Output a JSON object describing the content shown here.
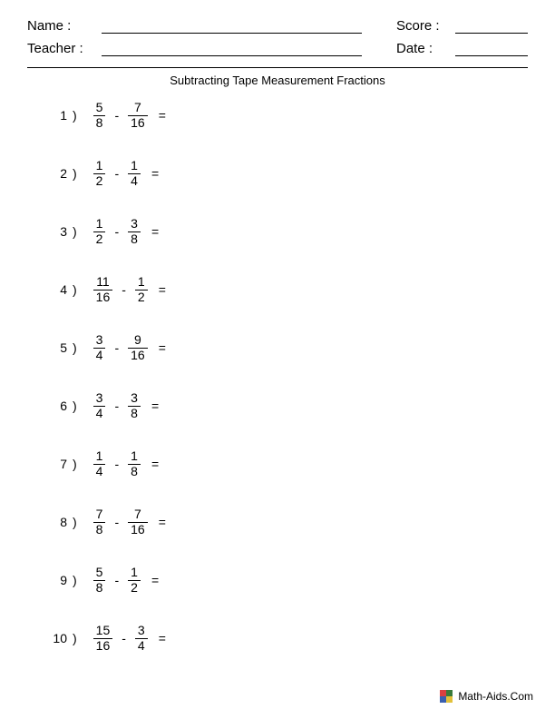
{
  "header": {
    "name_label": "Name :",
    "teacher_label": "Teacher :",
    "score_label": "Score :",
    "date_label": "Date :"
  },
  "title": "Subtracting Tape Measurement Fractions",
  "operator": "-",
  "equals": "=",
  "paren": ")",
  "problems": [
    {
      "n": "1",
      "a_num": "5",
      "a_den": "8",
      "b_num": "7",
      "b_den": "16"
    },
    {
      "n": "2",
      "a_num": "1",
      "a_den": "2",
      "b_num": "1",
      "b_den": "4"
    },
    {
      "n": "3",
      "a_num": "1",
      "a_den": "2",
      "b_num": "3",
      "b_den": "8"
    },
    {
      "n": "4",
      "a_num": "11",
      "a_den": "16",
      "b_num": "1",
      "b_den": "2"
    },
    {
      "n": "5",
      "a_num": "3",
      "a_den": "4",
      "b_num": "9",
      "b_den": "16"
    },
    {
      "n": "6",
      "a_num": "3",
      "a_den": "4",
      "b_num": "3",
      "b_den": "8"
    },
    {
      "n": "7",
      "a_num": "1",
      "a_den": "4",
      "b_num": "1",
      "b_den": "8"
    },
    {
      "n": "8",
      "a_num": "7",
      "a_den": "8",
      "b_num": "7",
      "b_den": "16"
    },
    {
      "n": "9",
      "a_num": "5",
      "a_den": "8",
      "b_num": "1",
      "b_den": "2"
    },
    {
      "n": "10",
      "a_num": "15",
      "a_den": "16",
      "b_num": "3",
      "b_den": "4"
    }
  ],
  "footer": {
    "text": "Math-Aids.Com",
    "logo_colors": [
      "#d94040",
      "#3a7a3a",
      "#3a5faf",
      "#e2c13a"
    ]
  },
  "colors": {
    "text": "#000000",
    "background": "#ffffff",
    "rule": "#000000"
  }
}
